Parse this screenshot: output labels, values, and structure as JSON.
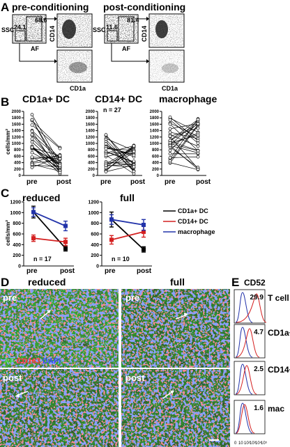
{
  "panels": {
    "A": {
      "letter": "A",
      "titles": [
        "pre-conditioning",
        "post-conditioning"
      ],
      "pre": {
        "ssc": "SSC",
        "af": "AF",
        "cd14": "CD14",
        "cd1a": "CD1a",
        "gate_low": "24.1",
        "gate_high": "68.6"
      },
      "post": {
        "ssc": "SSC",
        "af": "AF",
        "cd14": "CD14",
        "cd1a": "CD1a",
        "gate_low": "11.6",
        "gate_high": "81.4"
      }
    },
    "B": {
      "letter": "B",
      "ylabel": "cells/mm²",
      "n_label": "n = 27",
      "subpanels": [
        {
          "title": "CD1a+ DC",
          "xlabels": [
            "pre",
            "post"
          ]
        },
        {
          "title": "CD14+ DC",
          "xlabels": [
            "pre",
            "post"
          ]
        },
        {
          "title": "macrophage",
          "xlabels": [
            "pre",
            "post"
          ]
        }
      ],
      "yticks": [
        "0",
        "200",
        "400",
        "600",
        "800",
        "1000",
        "1200",
        "1400",
        "1600",
        "1800",
        "2000"
      ]
    },
    "C": {
      "letter": "C",
      "ylabel": "cells/mm²",
      "yticks": [
        "0",
        "200",
        "400",
        "600",
        "800",
        "1000",
        "1200"
      ],
      "legend": [
        "CD1a+ DC",
        "CD14+ DC",
        "macrophage"
      ],
      "colors": {
        "cd1a": "#000000",
        "cd14": "#d42020",
        "mac": "#2233aa"
      },
      "subpanels": [
        {
          "title": "reduced",
          "n_label": "n = 17",
          "xlabels": [
            "pre",
            "post"
          ]
        },
        {
          "title": "full",
          "n_label": "n = 10",
          "xlabels": [
            "pre",
            "post"
          ]
        }
      ]
    },
    "D": {
      "letter": "D",
      "col_titles": [
        "reduced",
        "full"
      ],
      "images": [
        {
          "label": "pre"
        },
        {
          "label": "pre"
        },
        {
          "label": "post"
        },
        {
          "label": "post"
        }
      ],
      "stain_legend": {
        "af": "AF",
        "cd163": "CD163",
        "dapi": "DAPI"
      }
    },
    "E": {
      "letter": "E",
      "title": "CD52",
      "histograms": [
        {
          "value": "29.9",
          "label": "T cell"
        },
        {
          "value": "4.7",
          "label": "CD1a+"
        },
        {
          "value": "2.5",
          "label": "CD14+"
        },
        {
          "value": "1.6",
          "label": "mac"
        }
      ],
      "xticks": [
        "0",
        "10",
        "10²",
        "10³",
        "10⁴",
        "10⁵"
      ]
    }
  },
  "chart_data": [
    {
      "type": "line",
      "panel": "C-reduced",
      "title": "reduced",
      "categories": [
        "pre",
        "post"
      ],
      "ylabel": "cells/mm²",
      "ylim": [
        0,
        1200
      ],
      "series": [
        {
          "name": "CD1a+ DC",
          "values": [
            1010,
            330
          ],
          "errors": [
            110,
            50
          ]
        },
        {
          "name": "CD14+ DC",
          "values": [
            520,
            450
          ],
          "errors": [
            60,
            70
          ]
        },
        {
          "name": "macrophage",
          "values": [
            1010,
            750
          ],
          "errors": [
            80,
            90
          ]
        }
      ]
    },
    {
      "type": "line",
      "panel": "C-full",
      "title": "full",
      "categories": [
        "pre",
        "post"
      ],
      "ylabel": "cells/mm²",
      "ylim": [
        0,
        1200
      ],
      "series": [
        {
          "name": "CD1a+ DC",
          "values": [
            870,
            310
          ],
          "errors": [
            140,
            50
          ]
        },
        {
          "name": "CD14+ DC",
          "values": [
            490,
            640
          ],
          "errors": [
            80,
            100
          ]
        },
        {
          "name": "macrophage",
          "values": [
            870,
            770
          ],
          "errors": [
            90,
            100
          ]
        }
      ]
    }
  ]
}
